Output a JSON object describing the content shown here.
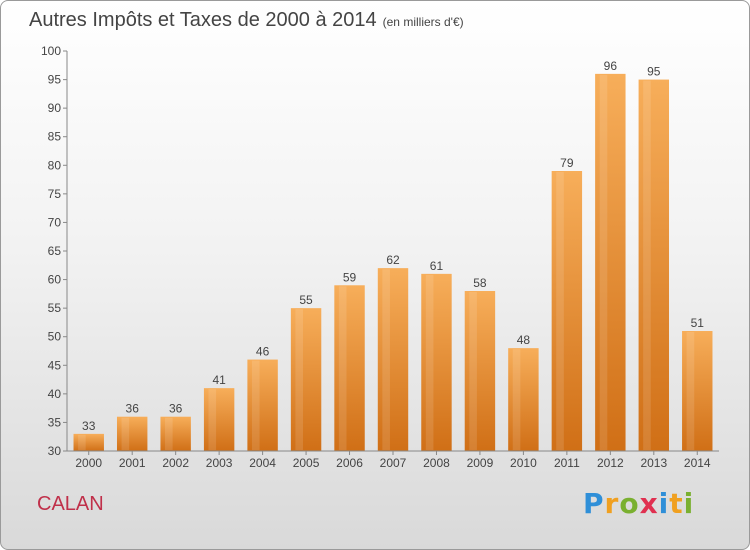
{
  "header": {
    "title": "Autres Impôts et Taxes de 2000 à 2014",
    "unit": "(en milliers d'€)"
  },
  "footer": {
    "place": "CALAN"
  },
  "logo": {
    "letters": [
      {
        "char": "P",
        "color": "#2f8fd8"
      },
      {
        "char": "r",
        "color": "#f0a020"
      },
      {
        "char": "o",
        "color": "#7ab030"
      },
      {
        "char": "x",
        "color": "#e03050"
      },
      {
        "char": "i",
        "color": "#2f8fd8"
      },
      {
        "char": "t",
        "color": "#f0a020"
      },
      {
        "char": "i",
        "color": "#7ab030"
      }
    ]
  },
  "chart_data": {
    "type": "bar",
    "title": "Autres Impôts et Taxes de 2000 à 2014",
    "subtitle": "(en milliers d'€)",
    "categories": [
      "2000",
      "2001",
      "2002",
      "2003",
      "2004",
      "2005",
      "2006",
      "2007",
      "2008",
      "2009",
      "2010",
      "2011",
      "2012",
      "2013",
      "2014"
    ],
    "values": [
      33,
      36,
      36,
      41,
      46,
      55,
      59,
      62,
      61,
      58,
      48,
      79,
      96,
      95,
      51
    ],
    "ylim": [
      30,
      100
    ],
    "yticks": [
      30,
      35,
      40,
      45,
      50,
      55,
      60,
      65,
      70,
      75,
      80,
      85,
      90,
      95,
      100
    ],
    "grid": false,
    "bar_color": "#f0922e",
    "bar_color_light": "#f7ae5a",
    "bar_color_dark": "#d06f16"
  }
}
